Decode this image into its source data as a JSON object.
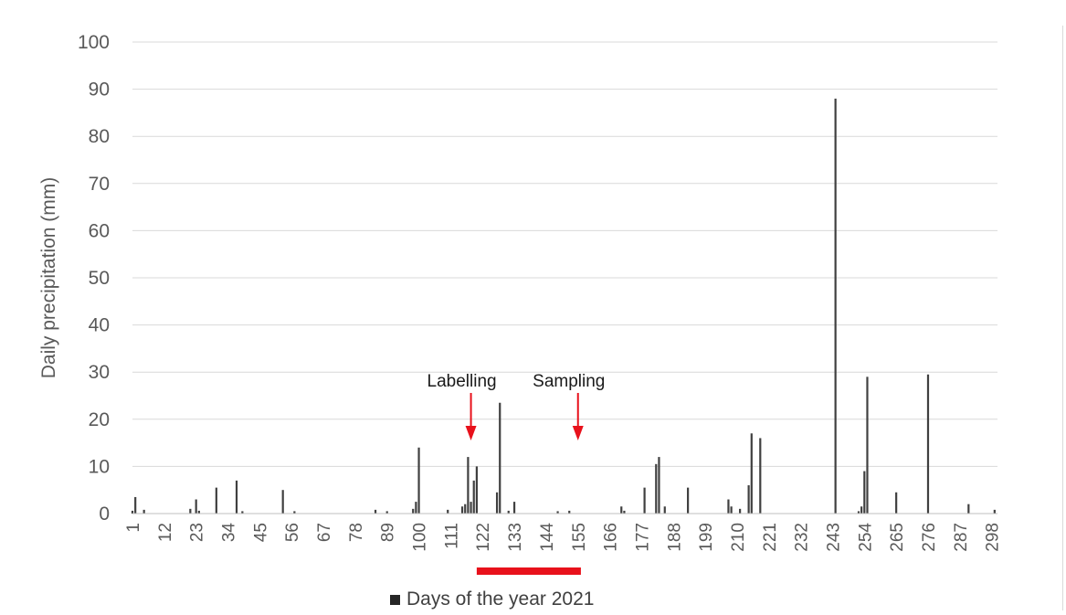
{
  "chart_data": {
    "type": "bar",
    "ylabel": "Daily precipitation (mm)",
    "xlabel": "",
    "ylim": [
      0,
      100
    ],
    "yticks": [
      0,
      10,
      20,
      30,
      40,
      50,
      60,
      70,
      80,
      90,
      100
    ],
    "x_range": [
      1,
      300
    ],
    "xticks": [
      1,
      12,
      23,
      34,
      45,
      56,
      67,
      78,
      89,
      100,
      111,
      122,
      133,
      144,
      155,
      166,
      177,
      188,
      199,
      210,
      221,
      232,
      243,
      254,
      265,
      276,
      287,
      298
    ],
    "grid": true,
    "bar_color": "#404040",
    "legend": {
      "label": "Days of the year 2021",
      "position": "bottom"
    },
    "series": [
      {
        "values": [
          {
            "x": 1,
            "y": 0.6
          },
          {
            "x": 2,
            "y": 3.5
          },
          {
            "x": 5,
            "y": 0.8
          },
          {
            "x": 21,
            "y": 1.0
          },
          {
            "x": 23,
            "y": 3.0
          },
          {
            "x": 24,
            "y": 0.6
          },
          {
            "x": 30,
            "y": 5.5
          },
          {
            "x": 37,
            "y": 7.0
          },
          {
            "x": 39,
            "y": 0.5
          },
          {
            "x": 53,
            "y": 5.0
          },
          {
            "x": 57,
            "y": 0.5
          },
          {
            "x": 85,
            "y": 0.8
          },
          {
            "x": 89,
            "y": 0.5
          },
          {
            "x": 98,
            "y": 1.0
          },
          {
            "x": 99,
            "y": 2.5
          },
          {
            "x": 100,
            "y": 14.0
          },
          {
            "x": 110,
            "y": 0.8
          },
          {
            "x": 115,
            "y": 1.5
          },
          {
            "x": 116,
            "y": 2.0
          },
          {
            "x": 117,
            "y": 12.0
          },
          {
            "x": 118,
            "y": 2.5
          },
          {
            "x": 119,
            "y": 7.0
          },
          {
            "x": 120,
            "y": 10.0
          },
          {
            "x": 127,
            "y": 4.5
          },
          {
            "x": 128,
            "y": 23.5
          },
          {
            "x": 131,
            "y": 0.6
          },
          {
            "x": 133,
            "y": 2.5
          },
          {
            "x": 148,
            "y": 0.5
          },
          {
            "x": 152,
            "y": 0.6
          },
          {
            "x": 170,
            "y": 1.5
          },
          {
            "x": 171,
            "y": 0.6
          },
          {
            "x": 178,
            "y": 5.5
          },
          {
            "x": 182,
            "y": 10.5
          },
          {
            "x": 183,
            "y": 12.0
          },
          {
            "x": 185,
            "y": 1.5
          },
          {
            "x": 193,
            "y": 5.5
          },
          {
            "x": 207,
            "y": 3.0
          },
          {
            "x": 208,
            "y": 1.5
          },
          {
            "x": 211,
            "y": 1.0
          },
          {
            "x": 214,
            "y": 6.0
          },
          {
            "x": 215,
            "y": 17.0
          },
          {
            "x": 218,
            "y": 16.0
          },
          {
            "x": 244,
            "y": 88.0
          },
          {
            "x": 252,
            "y": 0.5
          },
          {
            "x": 253,
            "y": 1.5
          },
          {
            "x": 254,
            "y": 9.0
          },
          {
            "x": 255,
            "y": 29.0
          },
          {
            "x": 265,
            "y": 4.5
          },
          {
            "x": 276,
            "y": 29.5
          },
          {
            "x": 290,
            "y": 2.0
          },
          {
            "x": 299,
            "y": 0.8
          }
        ]
      }
    ],
    "annotations": [
      {
        "id": "labelling",
        "text": "Labelling",
        "x": 118
      },
      {
        "id": "sampling",
        "text": "Sampling",
        "x": 155
      }
    ],
    "period_bar": {
      "x_start": 120,
      "x_end": 156,
      "color": "#e8111b"
    },
    "annotation_color": "#e8111b"
  }
}
